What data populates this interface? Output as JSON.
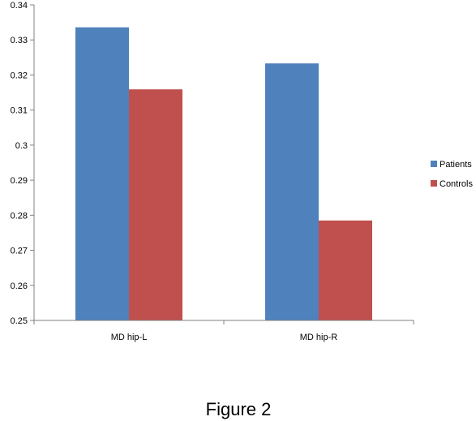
{
  "chart_data": {
    "type": "bar",
    "categories": [
      "MD hip-L",
      "MD hip-R"
    ],
    "series": [
      {
        "name": "Patients",
        "values": [
          0.3336,
          0.3233
        ],
        "color": "#4f81bd"
      },
      {
        "name": "Controls",
        "values": [
          0.3159,
          0.2785
        ],
        "color": "#c0504d"
      }
    ],
    "ylim": [
      0.25,
      0.34
    ],
    "yticks": [
      "0.25",
      "0.26",
      "0.27",
      "0.28",
      "0.29",
      "0.3",
      "0.31",
      "0.32",
      "0.33",
      "0.34"
    ],
    "title": "",
    "xlabel": "",
    "ylabel": "",
    "grid": false,
    "legend_position": "right"
  },
  "caption": "Figure 2"
}
